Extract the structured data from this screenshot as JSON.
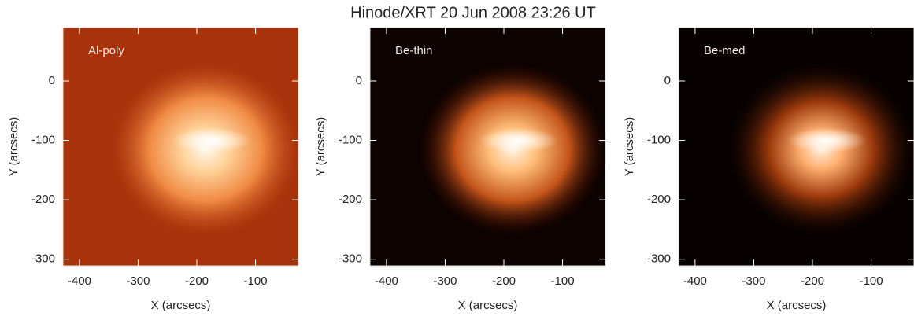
{
  "title": "Hinode/XRT 20 Jun 2008 23:26 UT",
  "chart_data": [
    {
      "type": "image",
      "label": "Al-poly",
      "xlabel": "X (arcsecs)",
      "ylabel": "Y (arcsecs)",
      "xlim": [
        -428,
        -27
      ],
      "ylim": [
        -311,
        90
      ],
      "xticks": [
        -400,
        -300,
        -200,
        -100
      ],
      "yticks": [
        0,
        -100,
        -200,
        -300
      ]
    },
    {
      "type": "image",
      "label": "Be-thin",
      "xlabel": "X (arcsecs)",
      "ylabel": "Y (arcsecs)",
      "xlim": [
        -428,
        -27
      ],
      "ylim": [
        -311,
        90
      ],
      "xticks": [
        -400,
        -300,
        -200,
        -100
      ],
      "yticks": [
        0,
        -100,
        -200,
        -300
      ]
    },
    {
      "type": "image",
      "label": "Be-med",
      "xlabel": "X (arcsecs)",
      "ylabel": "Y (arcsecs)",
      "xlim": [
        -428,
        -27
      ],
      "ylim": [
        -311,
        90
      ],
      "xticks": [
        -400,
        -300,
        -200,
        -100
      ],
      "yticks": [
        0,
        -100,
        -200,
        -300
      ]
    }
  ]
}
